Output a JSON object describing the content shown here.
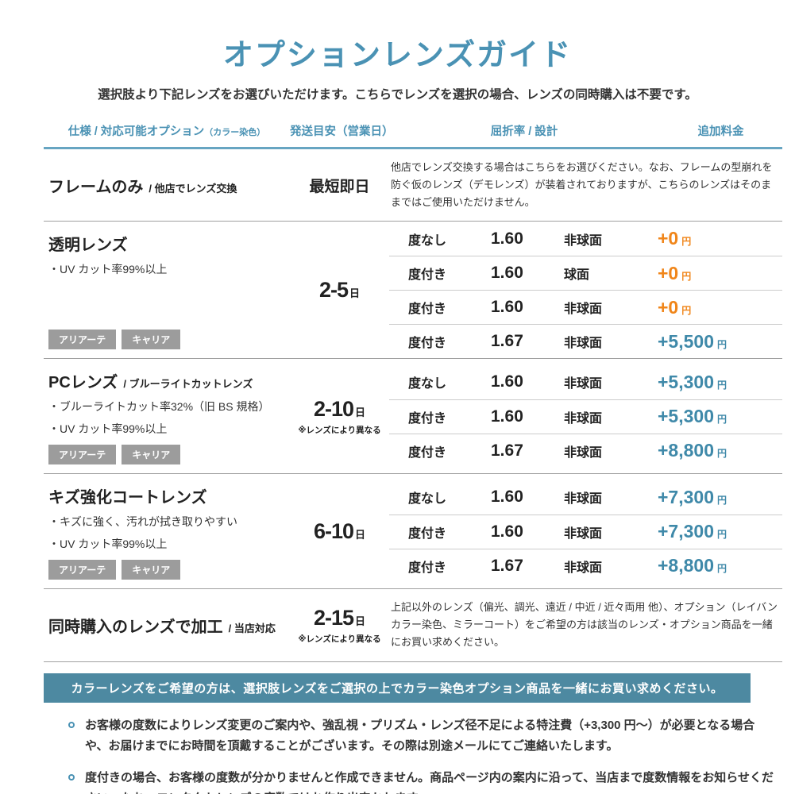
{
  "page": {
    "title": "オプションレンズガイド",
    "subtitle": "選択肢より下記レンズをお選びいただけます。こちらでレンズを選択の場合、レンズの同時購入は不要です。"
  },
  "table": {
    "headers": {
      "spec": "仕様 / 対応可能オプション",
      "spec_note": "（カラー染色）",
      "shipping": "発送目安（営業日）",
      "index_design": "屈折率 / 設計",
      "price": "追加料金"
    },
    "rows": [
      {
        "name": "フレームのみ",
        "name_suffix": "/ 他店でレンズ交換",
        "shipping": "最短即日",
        "note": "他店でレンズ交換する場合はこちらをお選びください。なお、フレームの型崩れを防ぐ仮のレンズ（デモレンズ）が装着されておりますが、こちらのレンズはそのままではご使用いただけません。"
      },
      {
        "name": "透明レンズ",
        "features": [
          "・UV カット率99%以上"
        ],
        "tags": [
          "アリアーテ",
          "キャリア"
        ],
        "shipping": "2-5",
        "shipping_unit": "日",
        "options": [
          {
            "rx": "度なし",
            "index": "1.60",
            "design": "非球面",
            "price": "+0",
            "price_unit": "円",
            "price_color": "orange"
          },
          {
            "rx": "度付き",
            "index": "1.60",
            "design": "球面",
            "price": "+0",
            "price_unit": "円",
            "price_color": "orange"
          },
          {
            "rx": "度付き",
            "index": "1.60",
            "design": "非球面",
            "price": "+0",
            "price_unit": "円",
            "price_color": "orange"
          },
          {
            "rx": "度付き",
            "index": "1.67",
            "design": "非球面",
            "price": "+5,500",
            "price_unit": "円",
            "price_color": "blue"
          }
        ]
      },
      {
        "name": "PCレンズ",
        "name_suffix": "/ ブルーライトカットレンズ",
        "features": [
          "・ブルーライトカット率32%（旧 BS 規格）",
          "・UV カット率99%以上"
        ],
        "tags": [
          "アリアーテ",
          "キャリア"
        ],
        "shipping": "2-10",
        "shipping_unit": "日",
        "shipping_note": "※レンズにより異なる",
        "options": [
          {
            "rx": "度なし",
            "index": "1.60",
            "design": "非球面",
            "price": "+5,300",
            "price_unit": "円",
            "price_color": "blue"
          },
          {
            "rx": "度付き",
            "index": "1.60",
            "design": "非球面",
            "price": "+5,300",
            "price_unit": "円",
            "price_color": "blue"
          },
          {
            "rx": "度付き",
            "index": "1.67",
            "design": "非球面",
            "price": "+8,800",
            "price_unit": "円",
            "price_color": "blue"
          }
        ]
      },
      {
        "name": "キズ強化コートレンズ",
        "features": [
          "・キズに強く、汚れが拭き取りやすい",
          "・UV カット率99%以上"
        ],
        "tags": [
          "アリアーテ",
          "キャリア"
        ],
        "shipping": "6-10",
        "shipping_unit": "日",
        "options": [
          {
            "rx": "度なし",
            "index": "1.60",
            "design": "非球面",
            "price": "+7,300",
            "price_unit": "円",
            "price_color": "blue"
          },
          {
            "rx": "度付き",
            "index": "1.60",
            "design": "非球面",
            "price": "+7,300",
            "price_unit": "円",
            "price_color": "blue"
          },
          {
            "rx": "度付き",
            "index": "1.67",
            "design": "非球面",
            "price": "+8,800",
            "price_unit": "円",
            "price_color": "blue"
          }
        ]
      },
      {
        "name": "同時購入のレンズで加工",
        "name_suffix": "/ 当店対応",
        "shipping": "2-15",
        "shipping_unit": "日",
        "shipping_note": "※レンズにより異なる",
        "note": "上記以外のレンズ（偏光、調光、遠近 / 中近 / 近々両用 他）、オプション（レイバンカラー染色、ミラーコート）をご希望の方は該当のレンズ・オプション商品を一緒にお買い求めください。"
      }
    ]
  },
  "banner": {
    "text": "カラーレンズをご希望の方は、選択肢レンズをご選択の上でカラー染色オプション商品を一緒にお買い求めください。"
  },
  "notes": [
    "お客様の度数によりレンズ変更のご案内や、強乱視・プリズム・レンズ径不足による特注費（+3,300 円〜）が必要となる場合や、お届けまでにお時間を頂戴することがございます。その際は別途メールにてご連絡いたします。",
    "度付きの場合、お客様の度数が分かりませんと作成できません。商品ページ内の案内に沿って、当店まで度数情報をお知らせください。なお、コンタクトレンズの度数ではお作り出来かねます。"
  ],
  "colors": {
    "accent_blue": "#4a92b4",
    "price_blue": "#3f89a9",
    "price_orange": "#f08519",
    "tag_gray": "#9c9c9c",
    "banner_bg": "#4d89a1",
    "divider_gray": "#a0a0a0",
    "subdivider_gray": "#cccccc"
  }
}
